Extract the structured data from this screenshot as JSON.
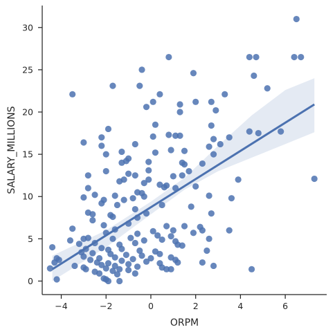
{
  "chart_data": {
    "type": "scatter",
    "title": "",
    "xlabel": "ORPM",
    "ylabel": "SALARY_MILLIONS",
    "xlim": [
      -4.85,
      7.85
    ],
    "ylim": [
      -1.6,
      32.6
    ],
    "x_ticks": [
      -4,
      -2,
      0,
      2,
      4,
      6
    ],
    "y_ticks": [
      0,
      5,
      10,
      15,
      20,
      25,
      30
    ],
    "grid": false,
    "legend": "none",
    "colors": {
      "points": "#4c72b0",
      "line": "#4c72b0",
      "band": "#4c72b0",
      "axis": "#262626"
    },
    "regression": {
      "x": [
        -4.4,
        7.3
      ],
      "y": [
        1.4,
        20.9
      ]
    },
    "confidence_band": {
      "x": [
        -4.4,
        -2.0,
        0.0,
        1.5,
        3.0,
        4.5,
        6.0,
        7.3
      ],
      "lower": [
        0.0,
        4.0,
        7.9,
        10.8,
        13.0,
        14.6,
        16.2,
        17.6
      ],
      "upper": [
        3.0,
        6.0,
        9.4,
        12.2,
        16.0,
        19.6,
        22.6,
        24.0
      ]
    },
    "points": [
      {
        "x": 6.5,
        "y": 31.0
      },
      {
        "x": 6.4,
        "y": 26.5
      },
      {
        "x": 6.7,
        "y": 26.5
      },
      {
        "x": 4.4,
        "y": 26.5
      },
      {
        "x": 4.7,
        "y": 26.5
      },
      {
        "x": 0.8,
        "y": 26.5
      },
      {
        "x": -0.4,
        "y": 25.0
      },
      {
        "x": 4.6,
        "y": 24.3
      },
      {
        "x": 1.9,
        "y": 24.6
      },
      {
        "x": -0.5,
        "y": 23.1
      },
      {
        "x": -1.7,
        "y": 23.1
      },
      {
        "x": -3.5,
        "y": 22.1
      },
      {
        "x": 0.4,
        "y": 22.1
      },
      {
        "x": 3.3,
        "y": 22.1
      },
      {
        "x": 5.2,
        "y": 22.8
      },
      {
        "x": 2.0,
        "y": 21.2
      },
      {
        "x": 1.3,
        "y": 20.9
      },
      {
        "x": 2.7,
        "y": 21.2
      },
      {
        "x": 2.9,
        "y": 20.2
      },
      {
        "x": 0.1,
        "y": 21.2
      },
      {
        "x": -0.2,
        "y": 20.6
      },
      {
        "x": 1.3,
        "y": 20.0
      },
      {
        "x": 0.2,
        "y": 18.5
      },
      {
        "x": 2.7,
        "y": 18.4
      },
      {
        "x": 4.4,
        "y": 17.7
      },
      {
        "x": 4.8,
        "y": 17.5
      },
      {
        "x": 5.8,
        "y": 17.7
      },
      {
        "x": -1.9,
        "y": 18.0
      },
      {
        "x": -2.2,
        "y": 17.0
      },
      {
        "x": 0.8,
        "y": 17.3
      },
      {
        "x": 1.1,
        "y": 17.2
      },
      {
        "x": 1.3,
        "y": 17.2
      },
      {
        "x": 0.1,
        "y": 17.1
      },
      {
        "x": 3.5,
        "y": 17.0
      },
      {
        "x": 2.8,
        "y": 16.8
      },
      {
        "x": 3.1,
        "y": 16.2
      },
      {
        "x": -3.0,
        "y": 16.4
      },
      {
        "x": -2.2,
        "y": 16.0
      },
      {
        "x": -0.7,
        "y": 16.2
      },
      {
        "x": 2.6,
        "y": 15.9
      },
      {
        "x": 0.9,
        "y": 15.5
      },
      {
        "x": 1.5,
        "y": 15.4
      },
      {
        "x": -1.3,
        "y": 15.3
      },
      {
        "x": 0.2,
        "y": 15.2
      },
      {
        "x": 2.8,
        "y": 15.0
      },
      {
        "x": -2.0,
        "y": 15.0
      },
      {
        "x": -1.0,
        "y": 14.5
      },
      {
        "x": -1.1,
        "y": 14.2
      },
      {
        "x": 1.4,
        "y": 14.0
      },
      {
        "x": 1.5,
        "y": 13.8
      },
      {
        "x": 2.3,
        "y": 13.9
      },
      {
        "x": -1.3,
        "y": 14.0
      },
      {
        "x": -0.1,
        "y": 14.1
      },
      {
        "x": -0.1,
        "y": 13.1
      },
      {
        "x": -2.0,
        "y": 13.0
      },
      {
        "x": 1.7,
        "y": 13.0
      },
      {
        "x": -2.8,
        "y": 12.5
      },
      {
        "x": -0.7,
        "y": 12.5
      },
      {
        "x": -1.0,
        "y": 12.7
      },
      {
        "x": -0.1,
        "y": 12.0
      },
      {
        "x": 1.0,
        "y": 12.4
      },
      {
        "x": 1.4,
        "y": 12.5
      },
      {
        "x": 3.9,
        "y": 12.0
      },
      {
        "x": 7.3,
        "y": 12.1
      },
      {
        "x": -1.4,
        "y": 11.8
      },
      {
        "x": -1.2,
        "y": 12.0
      },
      {
        "x": -0.3,
        "y": 11.6
      },
      {
        "x": 0.4,
        "y": 11.4
      },
      {
        "x": 0.6,
        "y": 11.1
      },
      {
        "x": 0.7,
        "y": 11.3
      },
      {
        "x": 1.1,
        "y": 11.0
      },
      {
        "x": 2.0,
        "y": 11.2
      },
      {
        "x": -2.8,
        "y": 11.0
      },
      {
        "x": -0.4,
        "y": 10.4
      },
      {
        "x": -0.6,
        "y": 10.5
      },
      {
        "x": -0.3,
        "y": 10.0
      },
      {
        "x": -2.5,
        "y": 10.2
      },
      {
        "x": -3.0,
        "y": 9.9
      },
      {
        "x": -1.6,
        "y": 10.1
      },
      {
        "x": 2.6,
        "y": 10.1
      },
      {
        "x": -2.1,
        "y": 9.6
      },
      {
        "x": -1.2,
        "y": 9.6
      },
      {
        "x": -0.8,
        "y": 9.8
      },
      {
        "x": -2.2,
        "y": 9.2
      },
      {
        "x": -1.5,
        "y": 9.0
      },
      {
        "x": 0.5,
        "y": 9.0
      },
      {
        "x": 1.8,
        "y": 8.8
      },
      {
        "x": 3.6,
        "y": 9.8
      },
      {
        "x": -2.8,
        "y": 8.1
      },
      {
        "x": -0.7,
        "y": 8.5
      },
      {
        "x": -2.6,
        "y": 7.9
      },
      {
        "x": -0.2,
        "y": 8.0
      },
      {
        "x": -1.8,
        "y": 7.8
      },
      {
        "x": -1.7,
        "y": 7.6
      },
      {
        "x": -0.6,
        "y": 7.5
      },
      {
        "x": 2.7,
        "y": 8.0
      },
      {
        "x": -2.6,
        "y": 7.2
      },
      {
        "x": -2.1,
        "y": 6.6
      },
      {
        "x": -1.0,
        "y": 6.8
      },
      {
        "x": 0.7,
        "y": 6.5
      },
      {
        "x": 1.5,
        "y": 6.5
      },
      {
        "x": 2.2,
        "y": 6.4
      },
      {
        "x": -3.5,
        "y": 6.2
      },
      {
        "x": -1.6,
        "y": 6.1
      },
      {
        "x": 0.1,
        "y": 5.9
      },
      {
        "x": 1.0,
        "y": 6.0
      },
      {
        "x": 2.3,
        "y": 6.0
      },
      {
        "x": 3.5,
        "y": 6.0
      },
      {
        "x": -2.0,
        "y": 5.7
      },
      {
        "x": -0.6,
        "y": 5.6
      },
      {
        "x": 0.3,
        "y": 5.4
      },
      {
        "x": 0.9,
        "y": 5.3
      },
      {
        "x": 1.9,
        "y": 5.7
      },
      {
        "x": -3.0,
        "y": 5.0
      },
      {
        "x": -3.6,
        "y": 4.8
      },
      {
        "x": -2.8,
        "y": 5.1
      },
      {
        "x": -1.7,
        "y": 5.0
      },
      {
        "x": -0.9,
        "y": 5.1
      },
      {
        "x": -0.3,
        "y": 4.8
      },
      {
        "x": 0.5,
        "y": 4.9
      },
      {
        "x": 1.1,
        "y": 4.7
      },
      {
        "x": 2.6,
        "y": 5.0
      },
      {
        "x": -3.2,
        "y": 4.4
      },
      {
        "x": -2.5,
        "y": 4.5
      },
      {
        "x": -1.4,
        "y": 4.3
      },
      {
        "x": -0.7,
        "y": 4.5
      },
      {
        "x": 1.2,
        "y": 4.3
      },
      {
        "x": 1.4,
        "y": 4.2
      },
      {
        "x": -4.4,
        "y": 4.0
      },
      {
        "x": -2.9,
        "y": 3.8
      },
      {
        "x": -2.2,
        "y": 3.9
      },
      {
        "x": -1.9,
        "y": 3.7
      },
      {
        "x": -1.3,
        "y": 3.8
      },
      {
        "x": -0.5,
        "y": 3.6
      },
      {
        "x": 0.2,
        "y": 3.5
      },
      {
        "x": 2.5,
        "y": 3.6
      },
      {
        "x": -3.1,
        "y": 3.4
      },
      {
        "x": -2.6,
        "y": 3.3
      },
      {
        "x": -1.8,
        "y": 3.2
      },
      {
        "x": -1.1,
        "y": 3.1
      },
      {
        "x": -0.4,
        "y": 3.0
      },
      {
        "x": 0.4,
        "y": 3.2
      },
      {
        "x": -3.0,
        "y": 2.9
      },
      {
        "x": -2.3,
        "y": 2.7
      },
      {
        "x": -1.6,
        "y": 2.8
      },
      {
        "x": -0.8,
        "y": 2.6
      },
      {
        "x": 0.0,
        "y": 2.7
      },
      {
        "x": 0.9,
        "y": 2.8
      },
      {
        "x": -4.2,
        "y": 2.7
      },
      {
        "x": -4.1,
        "y": 2.5
      },
      {
        "x": -2.7,
        "y": 2.5
      },
      {
        "x": -1.3,
        "y": 2.4
      },
      {
        "x": -0.2,
        "y": 2.3
      },
      {
        "x": 1.1,
        "y": 2.5
      },
      {
        "x": -4.3,
        "y": 2.2
      },
      {
        "x": -2.4,
        "y": 2.2
      },
      {
        "x": -1.9,
        "y": 2.1
      },
      {
        "x": -1.0,
        "y": 2.0
      },
      {
        "x": 0.4,
        "y": 2.1
      },
      {
        "x": 1.2,
        "y": 2.2
      },
      {
        "x": 2.3,
        "y": 2.2
      },
      {
        "x": -3.4,
        "y": 1.8
      },
      {
        "x": -2.2,
        "y": 1.9
      },
      {
        "x": -1.6,
        "y": 1.8
      },
      {
        "x": -0.6,
        "y": 1.7
      },
      {
        "x": 0.5,
        "y": 1.6
      },
      {
        "x": 2.8,
        "y": 1.8
      },
      {
        "x": -4.5,
        "y": 1.5
      },
      {
        "x": -3.0,
        "y": 1.6
      },
      {
        "x": -2.9,
        "y": 1.4
      },
      {
        "x": -2.0,
        "y": 1.5
      },
      {
        "x": -1.4,
        "y": 1.4
      },
      {
        "x": -1.0,
        "y": 1.3
      },
      {
        "x": 0.7,
        "y": 1.4
      },
      {
        "x": 0.9,
        "y": 1.4
      },
      {
        "x": 4.5,
        "y": 1.4
      },
      {
        "x": -2.5,
        "y": 1.1
      },
      {
        "x": -1.7,
        "y": 1.2
      },
      {
        "x": -2.3,
        "y": 0.9
      },
      {
        "x": -1.5,
        "y": 0.8
      },
      {
        "x": -0.7,
        "y": 0.9
      },
      {
        "x": -4.2,
        "y": 0.2
      },
      {
        "x": -2.0,
        "y": 0.2
      },
      {
        "x": -1.9,
        "y": 0.0
      },
      {
        "x": -1.4,
        "y": 0.0
      },
      {
        "x": -2.1,
        "y": 0.3
      }
    ]
  }
}
